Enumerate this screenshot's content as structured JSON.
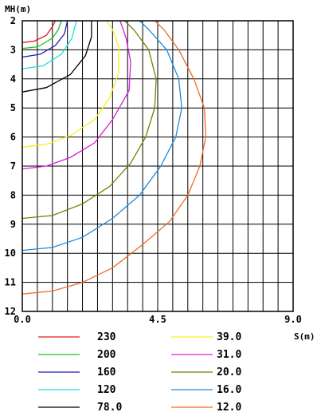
{
  "chart_data": {
    "type": "line",
    "title": "",
    "xlabel": "S(m)",
    "ylabel": "MH(m)",
    "xlim": [
      0,
      9
    ],
    "ylim": [
      2,
      12
    ],
    "y_inverted": true,
    "x_ticks": [
      "0.0",
      "4.5",
      "9.0"
    ],
    "y_ticks": [
      "2",
      "3",
      "4",
      "5",
      "6",
      "7",
      "8",
      "9",
      "10",
      "11",
      "12"
    ],
    "grid": true,
    "legend": "bottom",
    "series": [
      {
        "name": "230",
        "color": "#e8191f",
        "points": [
          [
            0,
            2.75
          ],
          [
            0.4,
            2.7
          ],
          [
            0.8,
            2.5
          ],
          [
            1.0,
            2.2
          ],
          [
            1.1,
            2.0
          ]
        ]
      },
      {
        "name": "200",
        "color": "#1fc41f",
        "points": [
          [
            0,
            2.95
          ],
          [
            0.5,
            2.9
          ],
          [
            1.0,
            2.6
          ],
          [
            1.2,
            2.3
          ],
          [
            1.3,
            2.0
          ]
        ]
      },
      {
        "name": "160",
        "color": "#1c1cb4",
        "points": [
          [
            0,
            3.25
          ],
          [
            0.6,
            3.15
          ],
          [
            1.1,
            2.85
          ],
          [
            1.4,
            2.45
          ],
          [
            1.5,
            2.0
          ]
        ]
      },
      {
        "name": "120",
        "color": "#22dcdc",
        "points": [
          [
            0,
            3.65
          ],
          [
            0.7,
            3.55
          ],
          [
            1.3,
            3.15
          ],
          [
            1.65,
            2.6
          ],
          [
            1.8,
            2.0
          ]
        ]
      },
      {
        "name": "78.0",
        "color": "#000000",
        "points": [
          [
            0,
            4.45
          ],
          [
            0.8,
            4.3
          ],
          [
            1.6,
            3.85
          ],
          [
            2.1,
            3.2
          ],
          [
            2.3,
            2.55
          ],
          [
            2.3,
            2.0
          ]
        ]
      },
      {
        "name": "39.0",
        "color": "#f2f21c",
        "points": [
          [
            0,
            6.35
          ],
          [
            0.8,
            6.25
          ],
          [
            1.6,
            5.95
          ],
          [
            2.4,
            5.4
          ],
          [
            2.9,
            4.65
          ],
          [
            3.2,
            3.8
          ],
          [
            3.2,
            2.9
          ],
          [
            3.0,
            2.3
          ],
          [
            2.8,
            2.0
          ]
        ]
      },
      {
        "name": "31.0",
        "color": "#dc1cdc",
        "points": [
          [
            0,
            7.1
          ],
          [
            0.8,
            7.0
          ],
          [
            1.6,
            6.7
          ],
          [
            2.4,
            6.2
          ],
          [
            3.0,
            5.4
          ],
          [
            3.55,
            4.4
          ],
          [
            3.6,
            3.4
          ],
          [
            3.45,
            2.6
          ],
          [
            3.25,
            2.0
          ]
        ]
      },
      {
        "name": "20.0",
        "color": "#7c7c00",
        "points": [
          [
            0,
            8.8
          ],
          [
            1.0,
            8.7
          ],
          [
            2.0,
            8.3
          ],
          [
            2.9,
            7.7
          ],
          [
            3.6,
            6.9
          ],
          [
            4.1,
            6.0
          ],
          [
            4.4,
            5.0
          ],
          [
            4.45,
            4.0
          ],
          [
            4.2,
            3.0
          ],
          [
            3.7,
            2.3
          ],
          [
            3.4,
            2.0
          ]
        ]
      },
      {
        "name": "16.0",
        "color": "#1c8ce0",
        "points": [
          [
            0,
            9.9
          ],
          [
            1.0,
            9.8
          ],
          [
            2.0,
            9.45
          ],
          [
            3.0,
            8.8
          ],
          [
            3.9,
            8.0
          ],
          [
            4.6,
            7.0
          ],
          [
            5.1,
            6.0
          ],
          [
            5.3,
            5.0
          ],
          [
            5.2,
            4.0
          ],
          [
            4.8,
            3.0
          ],
          [
            4.2,
            2.3
          ],
          [
            3.9,
            2.0
          ]
        ]
      },
      {
        "name": "12.0",
        "color": "#f06c28",
        "points": [
          [
            0,
            11.4
          ],
          [
            1.0,
            11.3
          ],
          [
            2.0,
            11.0
          ],
          [
            3.0,
            10.5
          ],
          [
            4.0,
            9.7
          ],
          [
            4.9,
            8.9
          ],
          [
            5.5,
            8.0
          ],
          [
            5.9,
            7.0
          ],
          [
            6.1,
            6.0
          ],
          [
            6.05,
            5.0
          ],
          [
            5.7,
            4.0
          ],
          [
            5.2,
            3.0
          ],
          [
            4.7,
            2.3
          ],
          [
            4.4,
            2.0
          ]
        ]
      }
    ]
  }
}
